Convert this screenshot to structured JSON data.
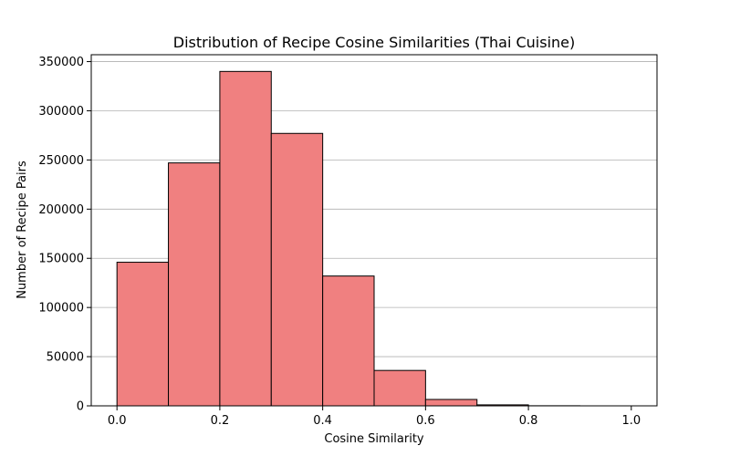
{
  "chart_data": {
    "type": "bar",
    "title": "Distribution of Recipe Cosine Similarities (Thai Cuisine)",
    "xlabel": "Cosine Similarity",
    "ylabel": "Number of Recipe Pairs",
    "bin_edges": [
      0.0,
      0.1,
      0.2,
      0.3,
      0.4,
      0.5,
      0.6,
      0.7,
      0.8,
      0.9,
      1.0
    ],
    "values": [
      146000,
      247000,
      340000,
      277000,
      132000,
      36000,
      6500,
      1000,
      100,
      0
    ],
    "xlim": [
      -0.05,
      1.05
    ],
    "ylim": [
      0,
      357000
    ],
    "xticks": [
      0.0,
      0.2,
      0.4,
      0.6,
      0.8,
      1.0
    ],
    "xtick_labels": [
      "0.0",
      "0.2",
      "0.4",
      "0.6",
      "0.8",
      "1.0"
    ],
    "yticks": [
      0,
      50000,
      100000,
      150000,
      200000,
      250000,
      300000,
      350000
    ],
    "ytick_labels": [
      "0",
      "50000",
      "100000",
      "150000",
      "200000",
      "250000",
      "300000",
      "350000"
    ],
    "grid": "y",
    "bar_color": "#f08080",
    "edge_color": "#000000"
  }
}
